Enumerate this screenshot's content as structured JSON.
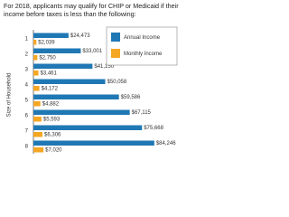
{
  "chart_data": {
    "type": "bar",
    "orientation": "horizontal",
    "title": "For 2018, applicants may qualify for CHIP or Medicaid if their income before taxes is less than the following:",
    "y_label": "Size of Household",
    "categories": [
      "1",
      "2",
      "3",
      "4",
      "5",
      "6",
      "7",
      "8"
    ],
    "series": [
      {
        "name": "Annual Income",
        "color": "#1f78b4",
        "values": [
          24473,
          33001,
          41150,
          50058,
          59586,
          67115,
          75668,
          84246
        ],
        "value_labels": [
          "$24,473",
          "$33,001",
          "$41,150",
          "$50,058",
          "$59,586",
          "$67,115",
          "$75,668",
          "$84,246"
        ]
      },
      {
        "name": "Monthly Income",
        "color": "#f5a623",
        "values": [
          2039,
          2750,
          3461,
          4172,
          4882,
          5593,
          6306,
          7020
        ],
        "value_labels": [
          "$2,039",
          "$2,750",
          "$3,461",
          "$4,172",
          "$4,882",
          "$5,593",
          "$6,306",
          "$7,020"
        ]
      }
    ],
    "xlim": [
      0,
      90000
    ],
    "legend": "upper right"
  }
}
